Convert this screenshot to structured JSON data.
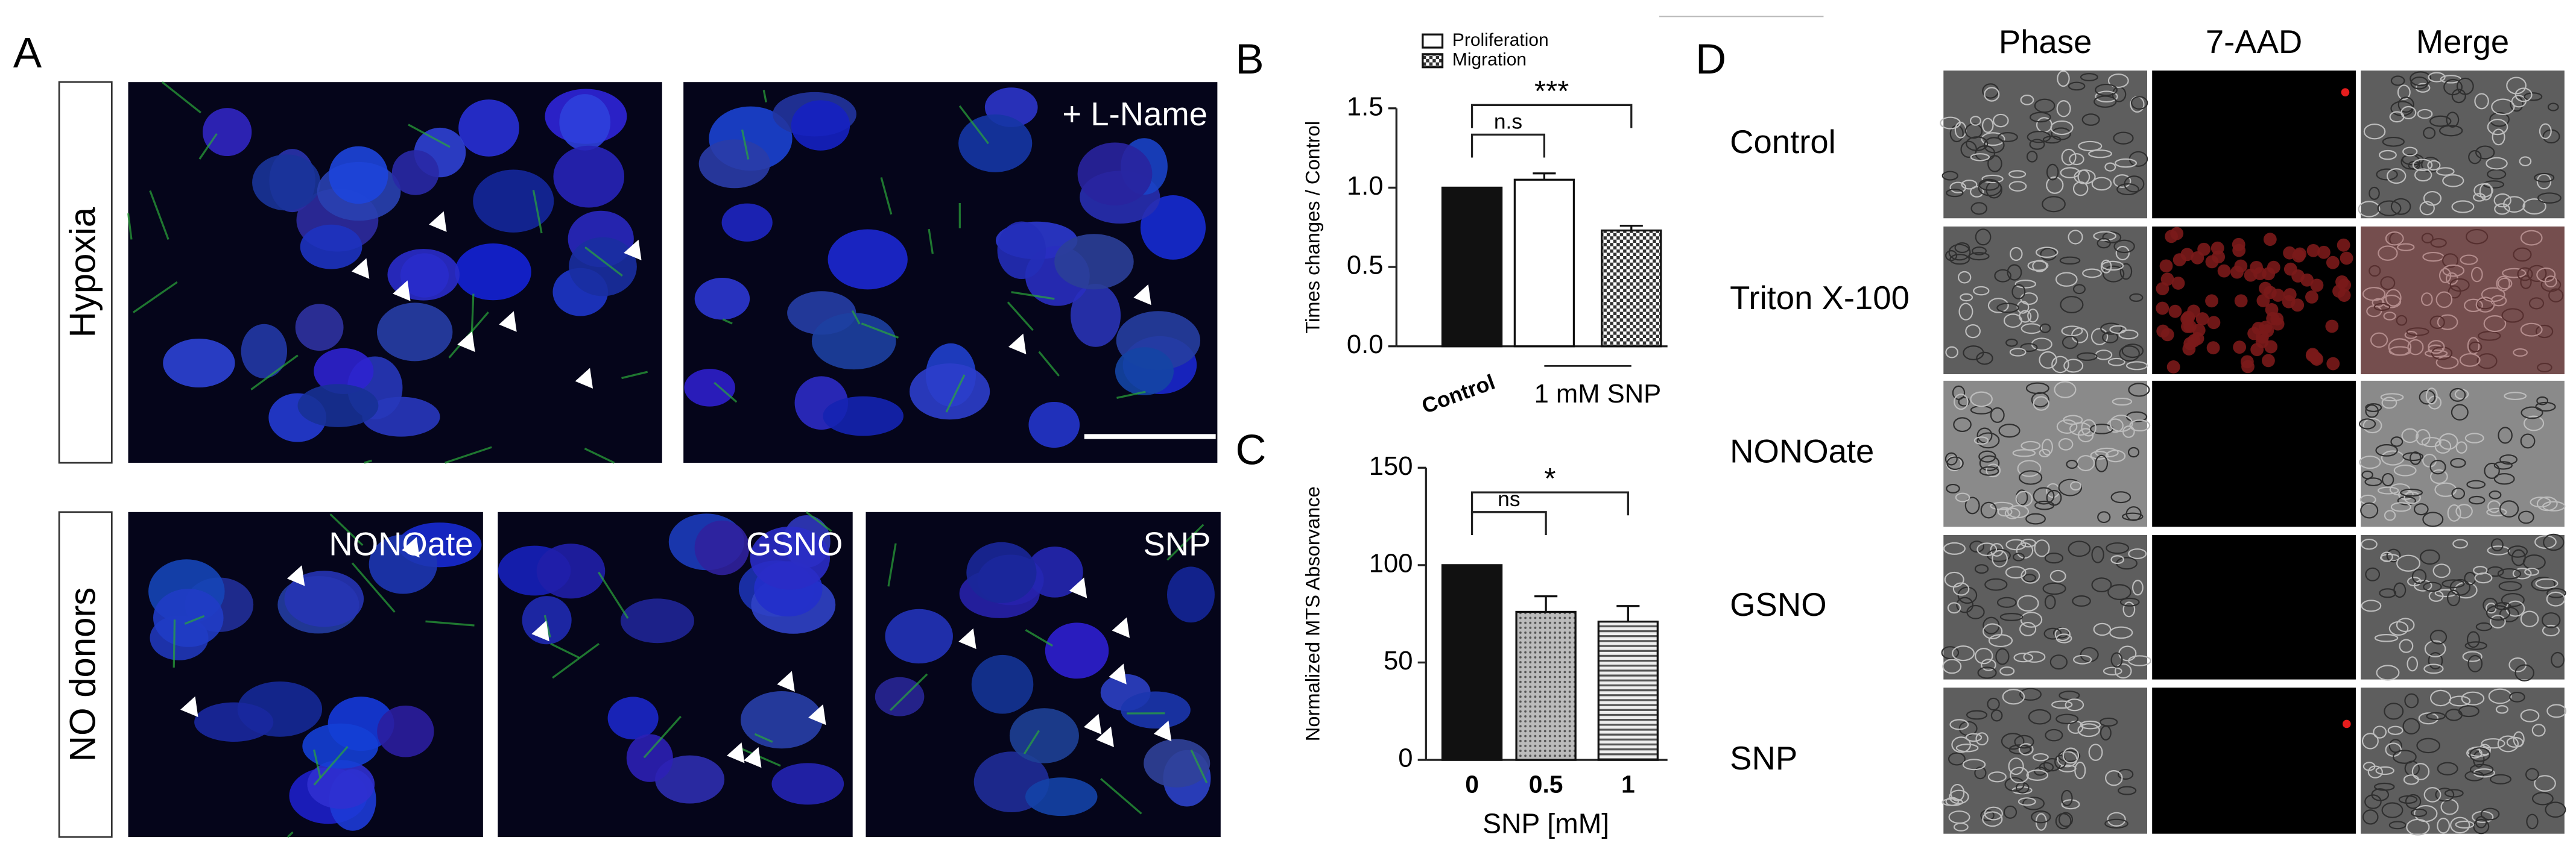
{
  "panel_a": {
    "label": "A",
    "row_labels": [
      "Hypoxia",
      "NO donors"
    ],
    "image_labels": [
      "+ L-Name",
      "NONOate",
      "GSNO",
      "SNP"
    ]
  },
  "chart_data": [
    {
      "type": "bar",
      "label": "B",
      "ylabel": "Times changes / Control",
      "group_labels": [
        "Control",
        "1 mM SNP"
      ],
      "legend": [
        "Proliferation",
        "Migration"
      ],
      "values": [
        1,
        1.05,
        0.73
      ],
      "errors": [
        null,
        0.04,
        0.03
      ],
      "annotations": [
        "n.s",
        "***"
      ],
      "ylim": [
        0,
        1.5
      ],
      "yticks": [
        {
          "value": 0,
          "label": "0.0"
        },
        0.5,
        {
          "value": 1,
          "label": "1.0"
        },
        1.5
      ]
    },
    {
      "type": "bar",
      "label": "C",
      "ylabel": "Normalized MTS Absorvance",
      "xlabel": "SNP [mM]",
      "categories": [
        "0",
        "0.5",
        "1"
      ],
      "values": [
        100,
        76,
        71
      ],
      "errors": [
        null,
        8,
        8
      ],
      "annotations": [
        "ns",
        "*"
      ],
      "ylim": [
        0,
        150
      ],
      "yticks": [
        0,
        50,
        100,
        150
      ]
    }
  ],
  "panel_d": {
    "label": "D",
    "column_headers": [
      "Phase",
      "7-AAD",
      "Merge"
    ],
    "row_labels": [
      "Control",
      "Triton X-100",
      "NONOate",
      "GSNO",
      "SNP"
    ]
  }
}
